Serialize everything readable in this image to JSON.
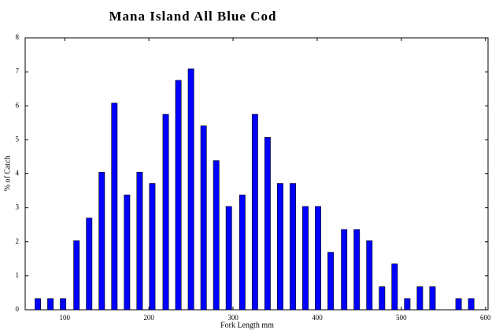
{
  "chart_data": {
    "type": "bar",
    "title": "Mana Island All Blue Cod",
    "x_label": "Fork Length mm",
    "y_label": "% of Catch",
    "x": [
      68,
      83,
      98,
      114,
      129,
      144,
      159,
      174,
      189,
      204,
      220,
      235,
      250,
      265,
      280,
      295,
      311,
      326,
      341,
      356,
      371,
      386,
      401,
      416,
      432,
      447,
      462,
      477,
      492,
      507,
      522,
      537,
      553,
      568,
      583
    ],
    "values": [
      0.33,
      0.33,
      0.33,
      2.03,
      2.7,
      4.05,
      6.08,
      3.38,
      4.05,
      3.72,
      5.75,
      6.75,
      7.09,
      5.41,
      4.39,
      3.04,
      3.38,
      5.75,
      5.07,
      3.72,
      3.72,
      3.04,
      3.04,
      1.69,
      2.36,
      2.36,
      2.03,
      0.68,
      1.35,
      0.33,
      0.68,
      0.68,
      0,
      0.33,
      0.33
    ],
    "color": "#0000ff",
    "xlim": [
      53,
      603
    ],
    "xticks": [
      100,
      200,
      300,
      400,
      500,
      600
    ],
    "ylim": [
      0,
      8
    ],
    "yticks": [
      0,
      1,
      2,
      3,
      4,
      5,
      6,
      7,
      8
    ],
    "grid": false
  }
}
